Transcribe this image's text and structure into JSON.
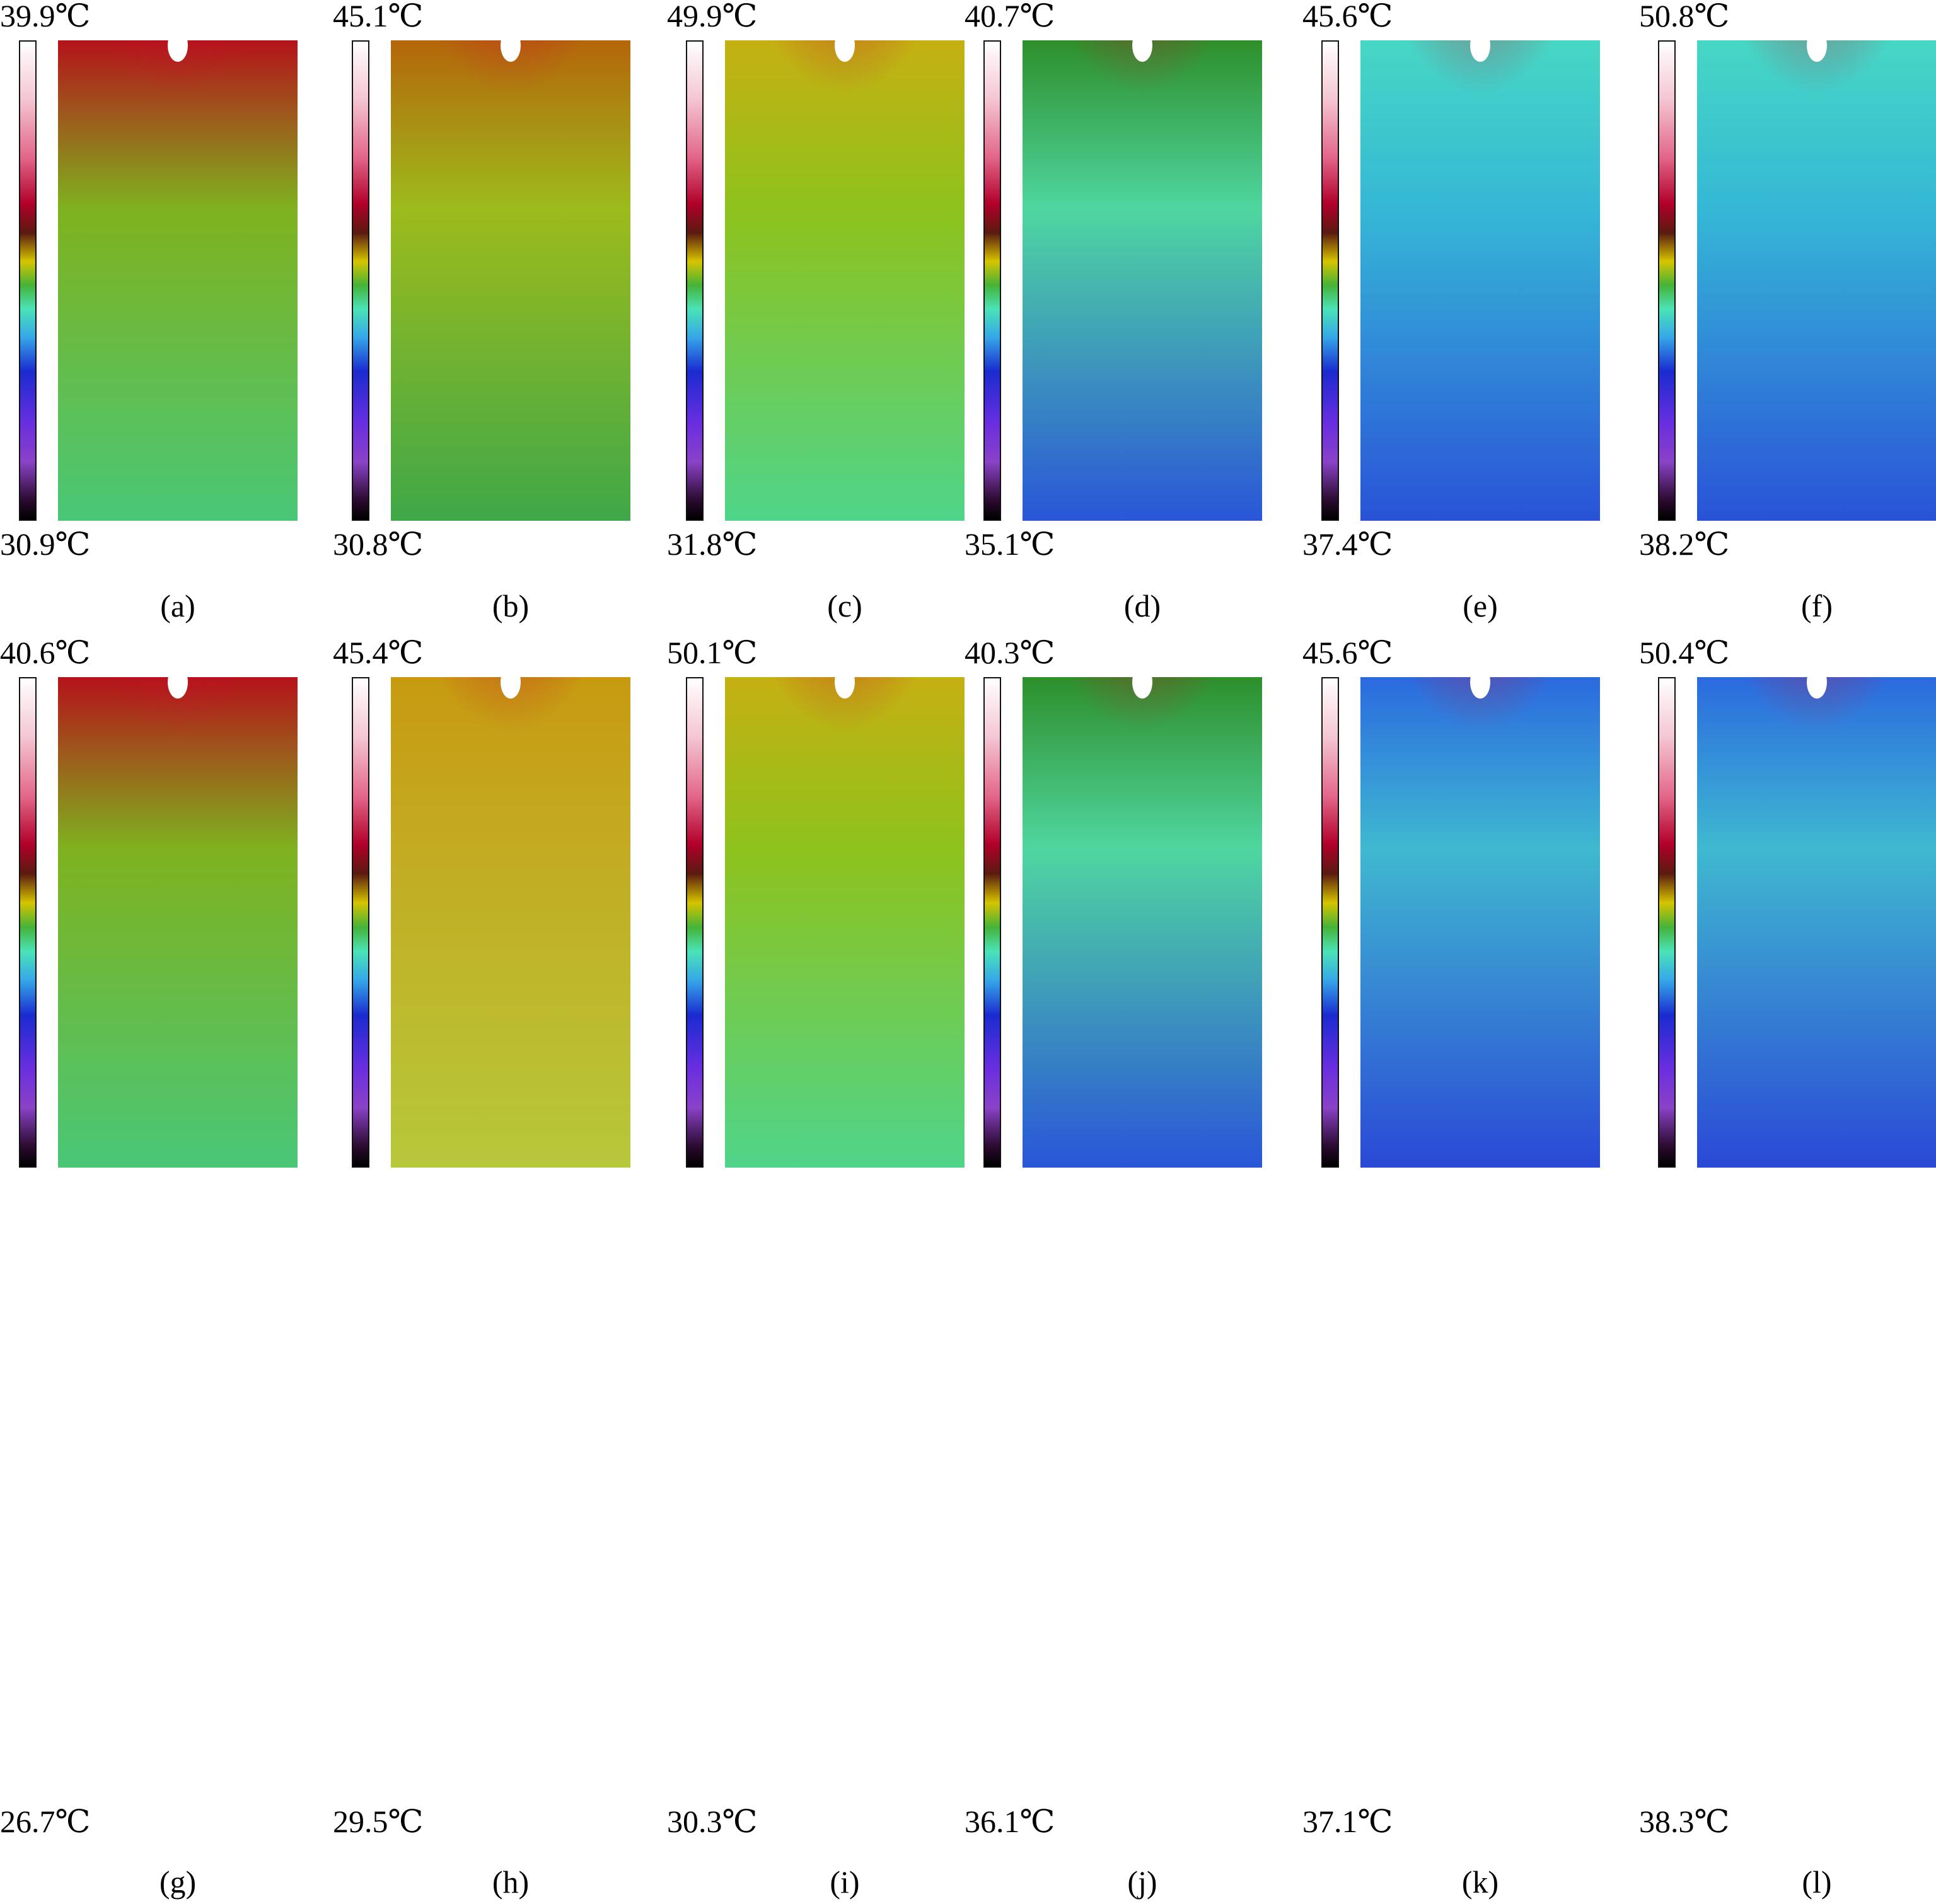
{
  "panels": [
    {
      "label": "(a)",
      "max": "39.9℃",
      "min": "30.9℃",
      "scheme": "warm-green"
    },
    {
      "label": "(b)",
      "max": "45.1℃",
      "min": "30.8℃",
      "scheme": "orange-green"
    },
    {
      "label": "(c)",
      "max": "49.9℃",
      "min": "31.8℃",
      "scheme": "yellow-green"
    },
    {
      "label": "(d)",
      "max": "40.7℃",
      "min": "35.1℃",
      "scheme": "green-blue"
    },
    {
      "label": "(e)",
      "max": "45.6℃",
      "min": "37.4℃",
      "scheme": "cyan-blue"
    },
    {
      "label": "(f)",
      "max": "50.8℃",
      "min": "38.2℃",
      "scheme": "cyan-blue"
    },
    {
      "label": "(g)",
      "max": "40.6℃",
      "min": "26.7℃",
      "scheme": "warm-green"
    },
    {
      "label": "(h)",
      "max": "45.4℃",
      "min": "29.5℃",
      "scheme": "orange-yellow"
    },
    {
      "label": "(i)",
      "max": "50.1℃",
      "min": "30.3℃",
      "scheme": "yellow-green"
    },
    {
      "label": "(j)",
      "max": "40.3℃",
      "min": "36.1℃",
      "scheme": "green-blue"
    },
    {
      "label": "(k)",
      "max": "45.6℃",
      "min": "37.1℃",
      "scheme": "blue"
    },
    {
      "label": "(l)",
      "max": "50.4℃",
      "min": "38.3℃",
      "scheme": "blue"
    }
  ],
  "colors": {
    "warm-green": {
      "top": "#b5121a",
      "mid": "#7fb21e",
      "bottom": "#49c777",
      "plume": "#c8102e"
    },
    "orange-green": {
      "top": "#b5660a",
      "mid": "#9dbb1c",
      "bottom": "#3fa848",
      "plume": "#c8102e"
    },
    "yellow-green": {
      "top": "#c6b012",
      "mid": "#8ec21c",
      "bottom": "#4fd58a",
      "plume": "#c8102e"
    },
    "orange-yellow": {
      "top": "#c79a10",
      "mid": "#c3ab22",
      "bottom": "#b7c83a",
      "plume": "#c8102e"
    },
    "green-blue": {
      "top": "#2e8f2a",
      "mid": "#4fd6a0",
      "bottom": "#2a55d8",
      "plume": "#c8102e"
    },
    "cyan-blue": {
      "top": "#47d7c4",
      "mid": "#35b8d6",
      "bottom": "#2a52d8",
      "plume": "#c8102e"
    },
    "blue": {
      "top": "#2b6ae0",
      "mid": "#3fb9d0",
      "bottom": "#2a48d6",
      "plume": "#c8102e"
    }
  }
}
